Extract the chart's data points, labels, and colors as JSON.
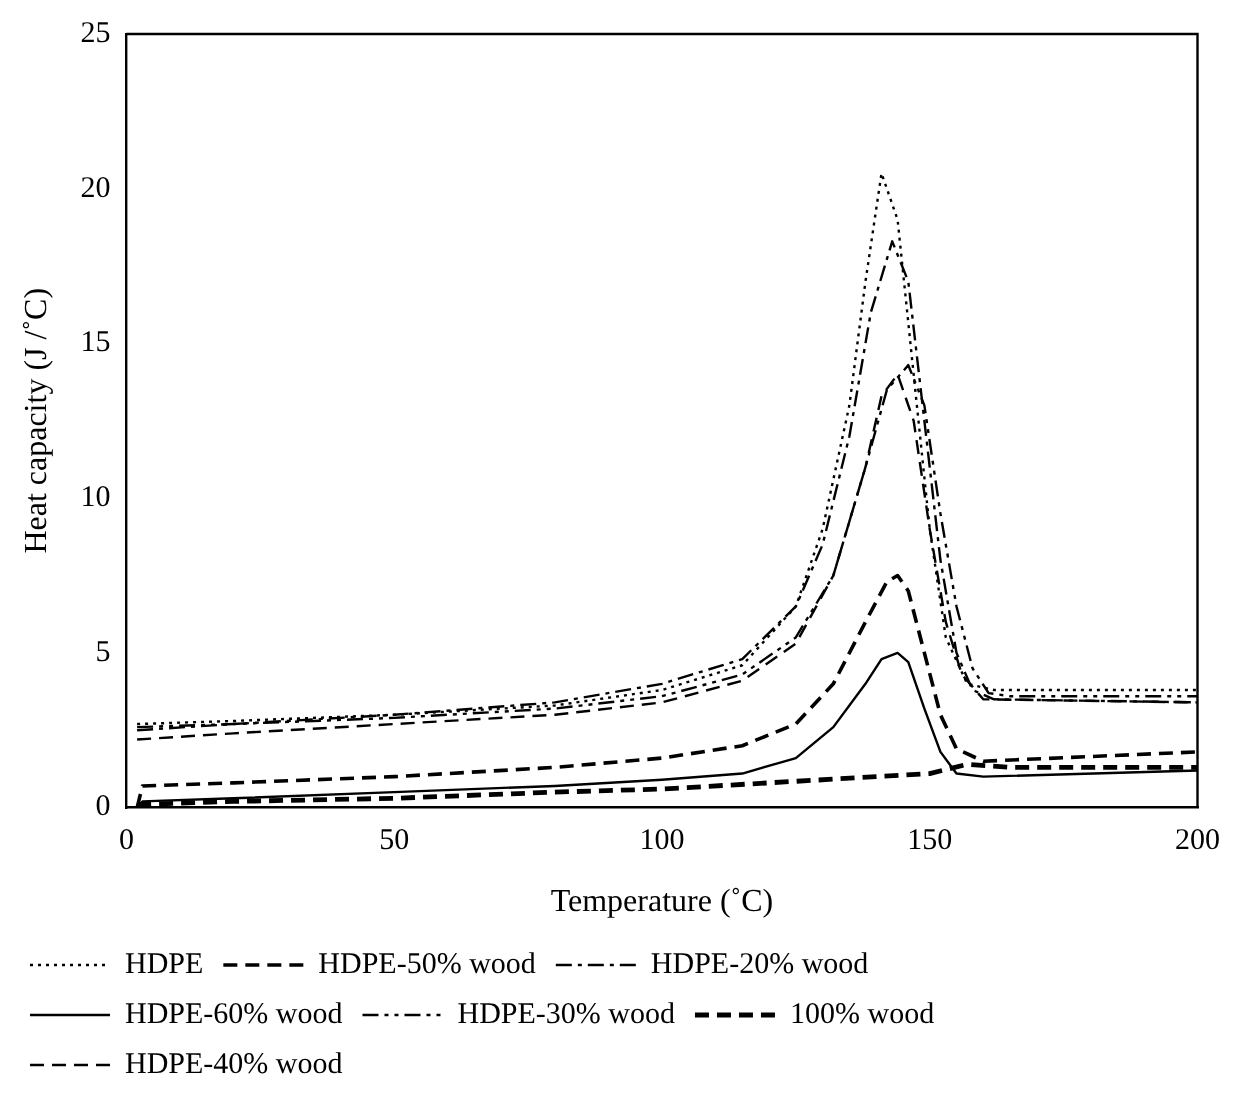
{
  "chart_data": {
    "type": "line",
    "xlabel": "Temperature (˚C)",
    "ylabel": "Heat capacity (J /˚C)",
    "xlim": [
      0,
      200
    ],
    "ylim": [
      0,
      25
    ],
    "xticks": [
      0,
      50,
      100,
      150,
      200
    ],
    "yticks": [
      0,
      5,
      10,
      15,
      20,
      25
    ],
    "grid": false,
    "legend": "bottom",
    "marker": "none",
    "series": [
      {
        "name": "HDPE",
        "color": "#000000",
        "line_style": "dotted",
        "x": [
          2,
          20,
          50,
          80,
          100,
          115,
          125,
          130,
          135,
          138,
          141,
          144,
          147,
          150,
          153,
          157,
          162,
          200
        ],
        "values": [
          2.7,
          2.8,
          3.0,
          3.3,
          3.8,
          4.6,
          6.5,
          9,
          13,
          17,
          20.5,
          19,
          14,
          9,
          5.5,
          4.0,
          3.8,
          3.8
        ]
      },
      {
        "name": "HDPE-20% wood",
        "color": "#000000",
        "line_style": "dashdot",
        "x": [
          2,
          20,
          50,
          80,
          100,
          115,
          125,
          130,
          135,
          139,
          143,
          146,
          149,
          152,
          155,
          158,
          162,
          200
        ],
        "values": [
          2.5,
          2.7,
          3.0,
          3.4,
          4.0,
          4.8,
          6.5,
          8.5,
          12,
          16,
          18.3,
          17,
          12.5,
          8,
          5,
          3.8,
          3.5,
          3.4
        ]
      },
      {
        "name": "HDPE-30% wood",
        "color": "#000000",
        "line_style": "dashdotdot",
        "x": [
          2,
          20,
          50,
          80,
          100,
          115,
          125,
          132,
          138,
          142,
          146,
          149,
          152,
          155,
          158,
          161,
          165,
          200
        ],
        "values": [
          2.6,
          2.7,
          2.9,
          3.2,
          3.6,
          4.3,
          5.5,
          7.5,
          11,
          13.5,
          14.3,
          13,
          9.5,
          6.5,
          4.5,
          3.7,
          3.6,
          3.6
        ]
      },
      {
        "name": "HDPE-40% wood",
        "color": "#000000",
        "line_style": "dashed",
        "x": [
          2,
          20,
          50,
          80,
          100,
          115,
          125,
          132,
          138,
          141,
          144,
          147,
          150,
          153,
          156,
          160,
          200
        ],
        "values": [
          2.2,
          2.4,
          2.7,
          3.0,
          3.4,
          4.1,
          5.3,
          7.5,
          11,
          13.3,
          14,
          12.5,
          9,
          6,
          4.3,
          3.5,
          3.4
        ]
      },
      {
        "name": "HDPE-50% wood",
        "color": "#000000",
        "line_style": "dashed",
        "x": [
          2,
          3,
          20,
          50,
          80,
          100,
          115,
          125,
          132,
          138,
          142,
          144,
          146,
          149,
          152,
          155,
          160,
          200
        ],
        "values": [
          0,
          0.7,
          0.8,
          1.0,
          1.3,
          1.6,
          2.0,
          2.7,
          4,
          6,
          7.3,
          7.5,
          7,
          5,
          3,
          1.9,
          1.5,
          1.8
        ]
      },
      {
        "name": "HDPE-60% wood",
        "color": "#000000",
        "line_style": "solid",
        "x": [
          2,
          3,
          20,
          50,
          80,
          100,
          115,
          125,
          132,
          138,
          141,
          144,
          146,
          149,
          152,
          155,
          160,
          200
        ],
        "values": [
          0,
          0.2,
          0.3,
          0.5,
          0.7,
          0.9,
          1.1,
          1.6,
          2.6,
          4,
          4.8,
          5,
          4.7,
          3.2,
          1.8,
          1.1,
          1.0,
          1.2
        ]
      },
      {
        "name": "100% wood",
        "color": "#000000",
        "line_style": "dashed",
        "x": [
          2,
          20,
          50,
          80,
          100,
          120,
          140,
          150,
          157,
          165,
          200
        ],
        "values": [
          0.1,
          0.2,
          0.3,
          0.5,
          0.6,
          0.8,
          1.0,
          1.1,
          1.4,
          1.3,
          1.3
        ]
      }
    ]
  }
}
